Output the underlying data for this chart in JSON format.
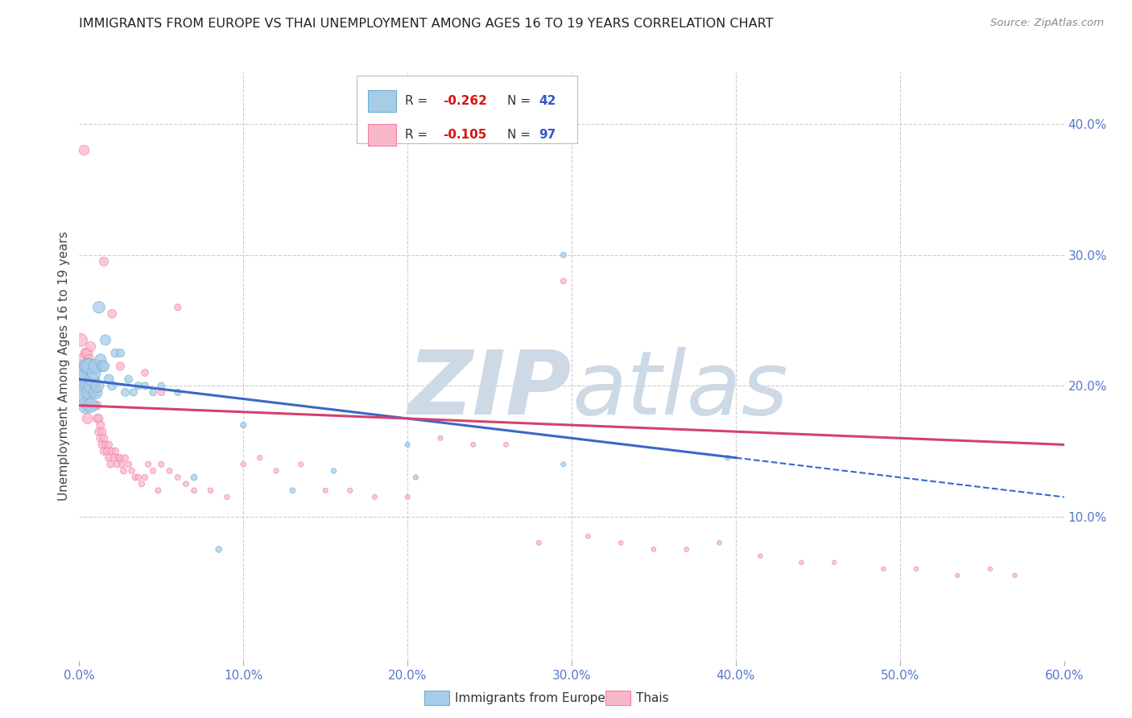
{
  "title": "IMMIGRANTS FROM EUROPE VS THAI UNEMPLOYMENT AMONG AGES 16 TO 19 YEARS CORRELATION CHART",
  "source": "Source: ZipAtlas.com",
  "ylabel": "Unemployment Among Ages 16 to 19 years",
  "xlim": [
    0.0,
    0.6
  ],
  "ylim": [
    -0.01,
    0.44
  ],
  "xticks": [
    0.0,
    0.1,
    0.2,
    0.3,
    0.4,
    0.5,
    0.6
  ],
  "yticks_right": [
    0.1,
    0.2,
    0.3,
    0.4
  ],
  "ytick_labels_right": [
    "10.0%",
    "20.0%",
    "30.0%",
    "40.0%"
  ],
  "grid_color": "#cccccc",
  "bg_color": "#ffffff",
  "watermark_color": "#cdd9e5",
  "legend_R1": "-0.262",
  "legend_N1": "42",
  "legend_R2": "-0.105",
  "legend_N2": "97",
  "legend_label1": "Immigrants from Europe",
  "legend_label2": "Thais",
  "blue_fill": "#a8cce8",
  "blue_edge": "#6aaed6",
  "pink_fill": "#f9b8c8",
  "pink_edge": "#f47aaa",
  "trend_blue": "#3a67c8",
  "trend_pink": "#d44070",
  "blue_x": [
    0.001,
    0.002,
    0.003,
    0.004,
    0.005,
    0.005,
    0.006,
    0.006,
    0.007,
    0.007,
    0.008,
    0.009,
    0.01,
    0.01,
    0.011,
    0.012,
    0.013,
    0.014,
    0.015,
    0.016,
    0.018,
    0.02,
    0.022,
    0.025,
    0.028,
    0.03,
    0.033,
    0.036,
    0.04,
    0.045,
    0.05,
    0.06,
    0.07,
    0.085,
    0.1,
    0.13,
    0.155,
    0.2,
    0.205,
    0.295,
    0.395,
    0.295
  ],
  "blue_y": [
    0.195,
    0.205,
    0.21,
    0.185,
    0.2,
    0.215,
    0.195,
    0.215,
    0.185,
    0.2,
    0.205,
    0.21,
    0.195,
    0.215,
    0.2,
    0.26,
    0.22,
    0.215,
    0.215,
    0.235,
    0.205,
    0.2,
    0.225,
    0.225,
    0.195,
    0.205,
    0.195,
    0.2,
    0.2,
    0.195,
    0.2,
    0.195,
    0.13,
    0.075,
    0.17,
    0.12,
    0.135,
    0.155,
    0.13,
    0.3,
    0.145,
    0.14
  ],
  "blue_sizes": [
    300,
    260,
    230,
    200,
    180,
    200,
    170,
    180,
    160,
    170,
    160,
    150,
    140,
    150,
    130,
    110,
    100,
    95,
    90,
    85,
    75,
    65,
    60,
    55,
    50,
    50,
    45,
    45,
    42,
    40,
    38,
    35,
    32,
    30,
    28,
    25,
    22,
    20,
    20,
    25,
    20,
    20
  ],
  "pink_x": [
    0.001,
    0.001,
    0.002,
    0.002,
    0.003,
    0.003,
    0.004,
    0.004,
    0.005,
    0.005,
    0.005,
    0.006,
    0.006,
    0.007,
    0.007,
    0.007,
    0.008,
    0.008,
    0.008,
    0.009,
    0.009,
    0.01,
    0.01,
    0.01,
    0.011,
    0.011,
    0.012,
    0.012,
    0.013,
    0.013,
    0.014,
    0.014,
    0.015,
    0.015,
    0.016,
    0.017,
    0.018,
    0.018,
    0.019,
    0.02,
    0.021,
    0.022,
    0.023,
    0.024,
    0.025,
    0.026,
    0.027,
    0.028,
    0.03,
    0.032,
    0.034,
    0.036,
    0.038,
    0.04,
    0.042,
    0.045,
    0.048,
    0.05,
    0.055,
    0.06,
    0.065,
    0.07,
    0.08,
    0.09,
    0.1,
    0.11,
    0.12,
    0.135,
    0.15,
    0.165,
    0.18,
    0.2,
    0.22,
    0.24,
    0.26,
    0.28,
    0.295,
    0.31,
    0.33,
    0.35,
    0.37,
    0.39,
    0.415,
    0.44,
    0.46,
    0.49,
    0.51,
    0.535,
    0.555,
    0.57,
    0.003,
    0.015,
    0.02,
    0.025,
    0.04,
    0.05,
    0.06
  ],
  "pink_y": [
    0.215,
    0.235,
    0.195,
    0.22,
    0.205,
    0.215,
    0.185,
    0.225,
    0.175,
    0.195,
    0.225,
    0.2,
    0.22,
    0.195,
    0.215,
    0.23,
    0.185,
    0.2,
    0.215,
    0.195,
    0.185,
    0.2,
    0.185,
    0.195,
    0.175,
    0.185,
    0.165,
    0.175,
    0.16,
    0.17,
    0.155,
    0.165,
    0.15,
    0.16,
    0.155,
    0.15,
    0.145,
    0.155,
    0.14,
    0.15,
    0.145,
    0.15,
    0.14,
    0.145,
    0.145,
    0.14,
    0.135,
    0.145,
    0.14,
    0.135,
    0.13,
    0.13,
    0.125,
    0.13,
    0.14,
    0.135,
    0.12,
    0.14,
    0.135,
    0.13,
    0.125,
    0.12,
    0.12,
    0.115,
    0.14,
    0.145,
    0.135,
    0.14,
    0.12,
    0.12,
    0.115,
    0.115,
    0.16,
    0.155,
    0.155,
    0.08,
    0.28,
    0.085,
    0.08,
    0.075,
    0.075,
    0.08,
    0.07,
    0.065,
    0.065,
    0.06,
    0.06,
    0.055,
    0.06,
    0.055,
    0.38,
    0.295,
    0.255,
    0.215,
    0.21,
    0.195,
    0.26
  ],
  "pink_sizes": [
    130,
    130,
    110,
    110,
    95,
    95,
    90,
    90,
    85,
    85,
    85,
    80,
    80,
    75,
    75,
    75,
    70,
    70,
    70,
    65,
    65,
    60,
    60,
    60,
    58,
    58,
    55,
    55,
    52,
    52,
    50,
    50,
    48,
    48,
    45,
    44,
    42,
    42,
    40,
    40,
    38,
    37,
    36,
    35,
    35,
    34,
    33,
    33,
    32,
    31,
    30,
    30,
    29,
    28,
    27,
    27,
    26,
    26,
    25,
    25,
    24,
    24,
    23,
    22,
    22,
    21,
    21,
    20,
    20,
    20,
    19,
    19,
    19,
    18,
    18,
    18,
    25,
    17,
    17,
    17,
    17,
    16,
    16,
    16,
    15,
    15,
    15,
    15,
    15,
    15,
    80,
    65,
    60,
    55,
    40,
    38,
    35
  ],
  "trend_blue_x0": 0.0,
  "trend_blue_y0": 0.205,
  "trend_blue_x1": 0.4,
  "trend_blue_y1": 0.145,
  "trend_blue_dash_x0": 0.4,
  "trend_blue_dash_y0": 0.145,
  "trend_blue_dash_x1": 0.6,
  "trend_blue_dash_y1": 0.115,
  "trend_pink_x0": 0.0,
  "trend_pink_y0": 0.185,
  "trend_pink_x1": 0.6,
  "trend_pink_y1": 0.155
}
